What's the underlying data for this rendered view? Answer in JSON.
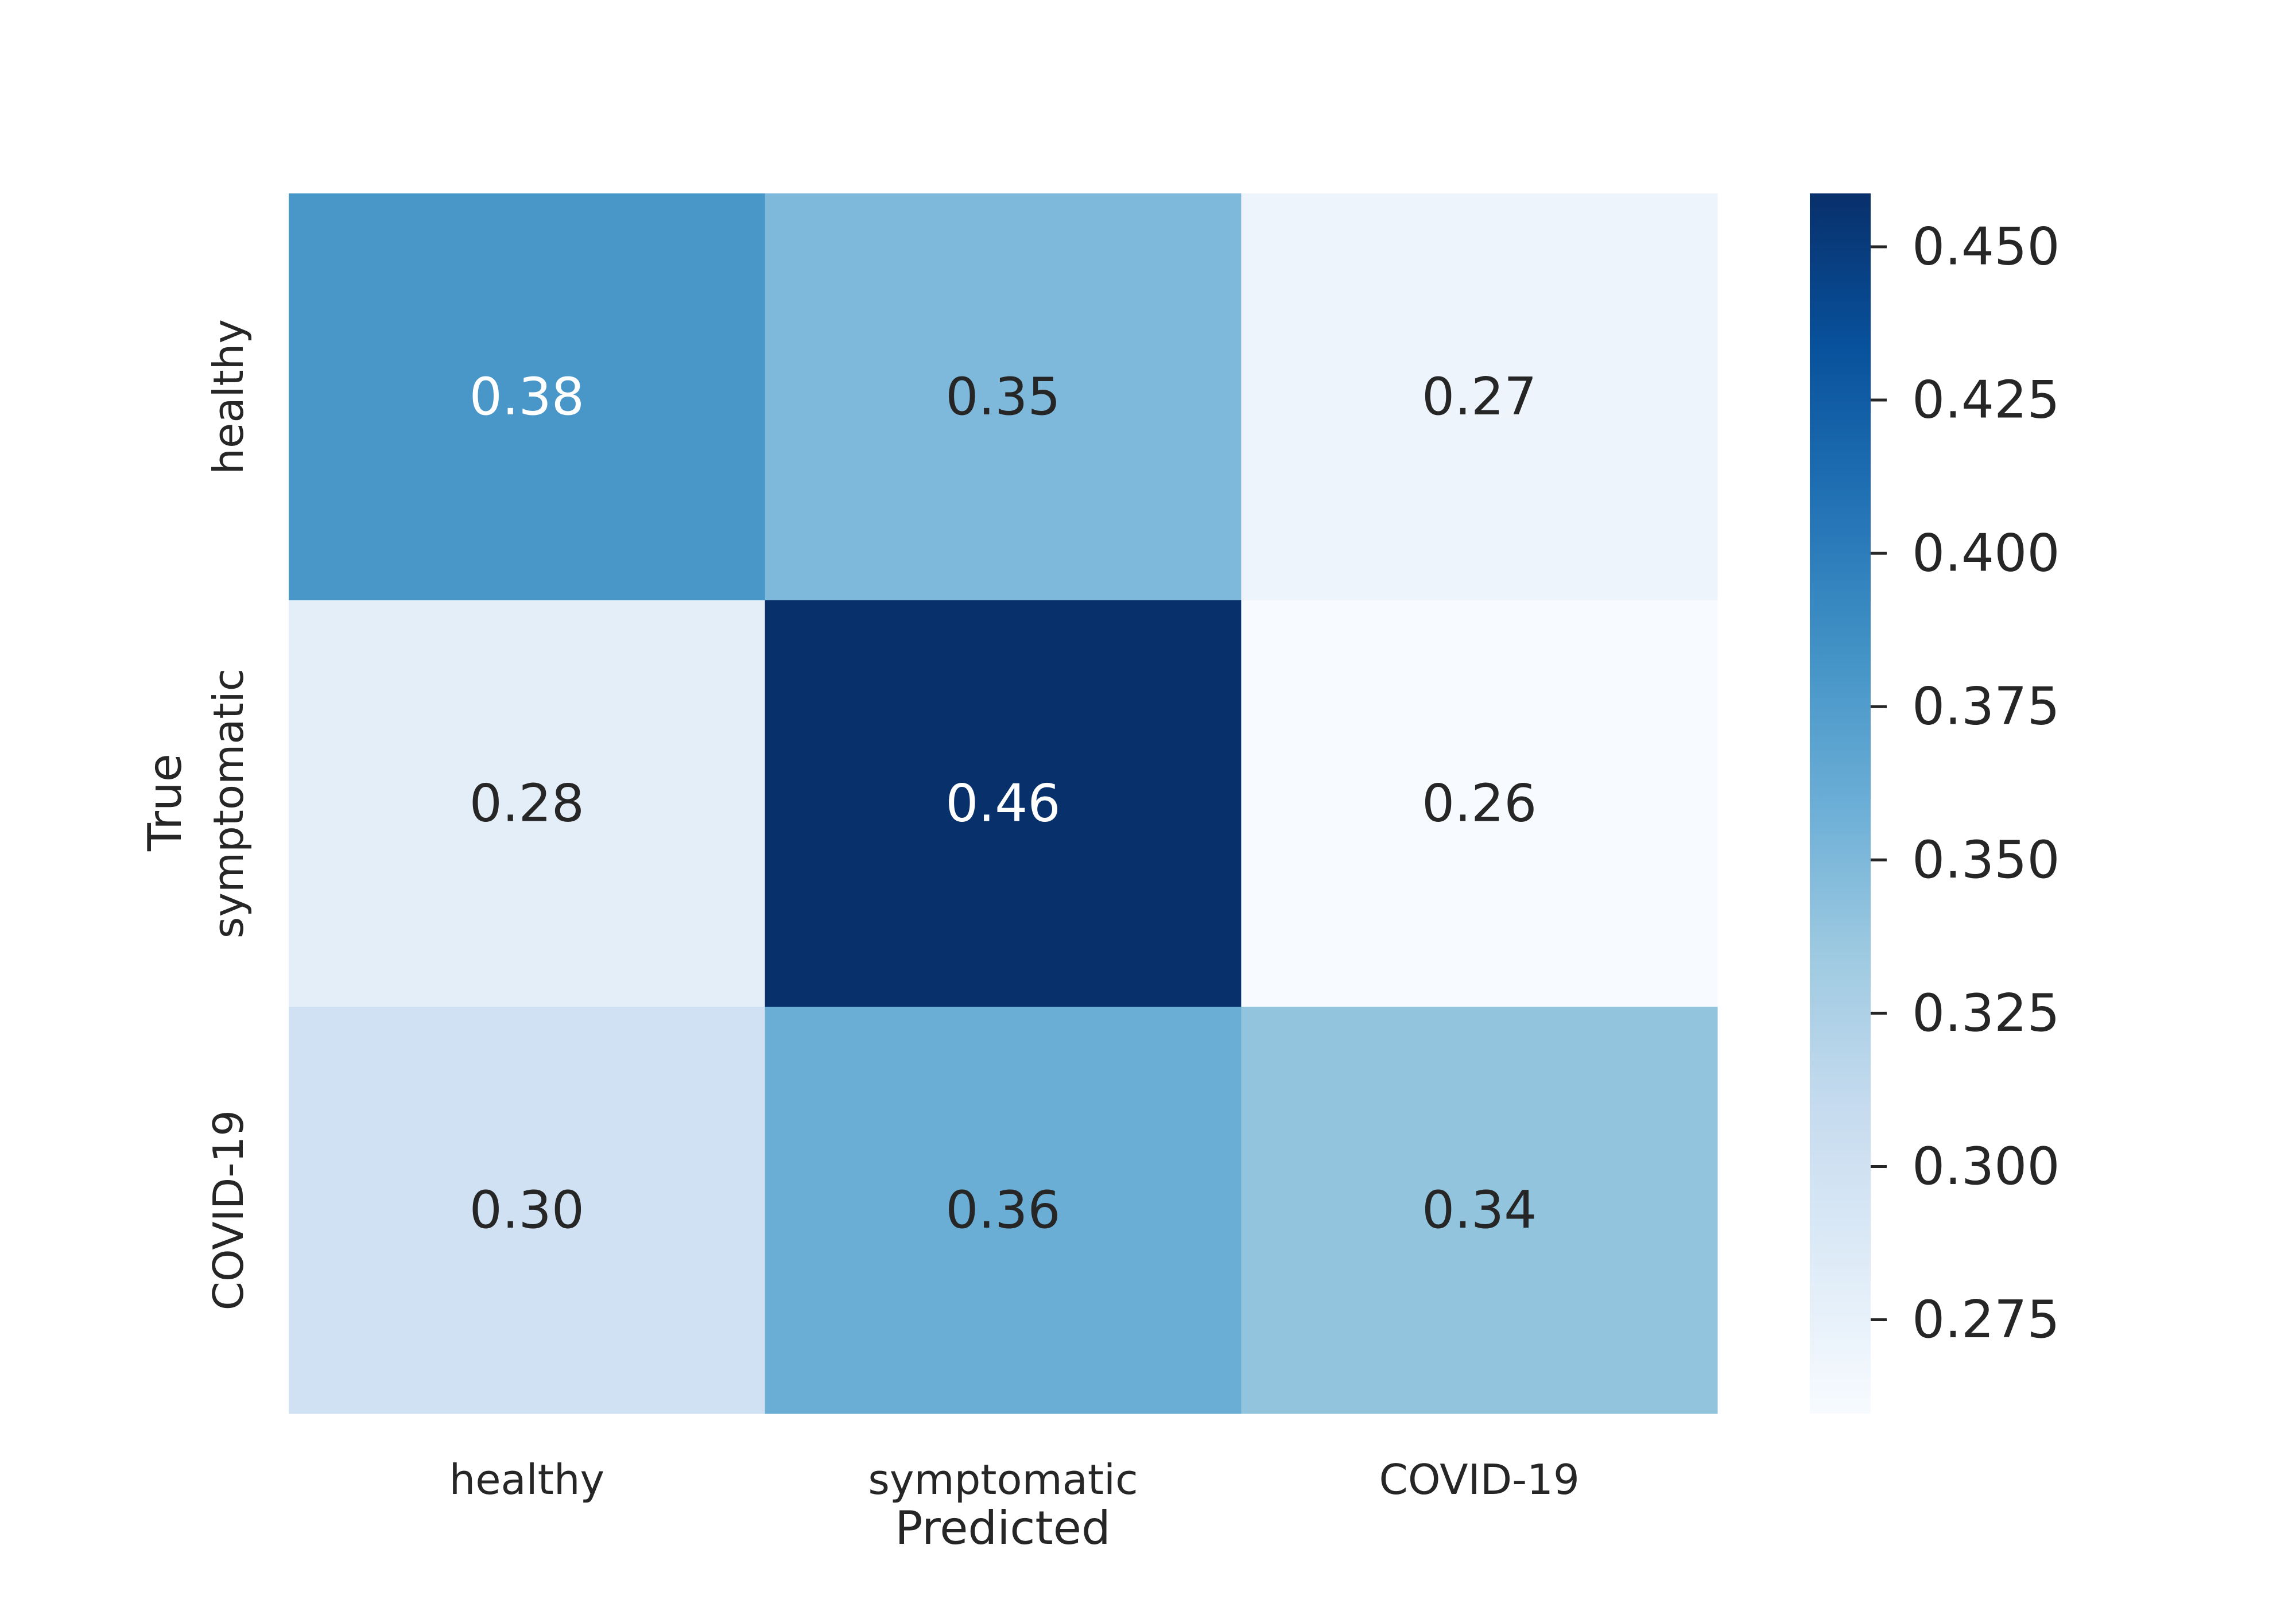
{
  "chart_data": {
    "type": "heatmap",
    "title": "",
    "xlabel": "Predicted",
    "ylabel": "True",
    "x_categories": [
      "healthy",
      "symptomatic",
      "COVID-19"
    ],
    "y_categories": [
      "healthy",
      "symptomatic",
      "COVID-19"
    ],
    "values": [
      [
        0.38,
        0.35,
        0.27
      ],
      [
        0.28,
        0.46,
        0.26
      ],
      [
        0.3,
        0.36,
        0.34
      ]
    ],
    "value_labels": [
      [
        "0.38",
        "0.35",
        "0.27"
      ],
      [
        "0.28",
        "0.46",
        "0.26"
      ],
      [
        "0.30",
        "0.36",
        "0.34"
      ]
    ],
    "colormap": "Blues",
    "color_range": [
      0.2597,
      0.4587
    ],
    "colorbar_ticks": [
      0.275,
      0.3,
      0.325,
      0.35,
      0.375,
      0.4,
      0.425,
      0.45
    ],
    "colorbar_tick_labels": [
      "0.275",
      "0.300",
      "0.325",
      "0.350",
      "0.375",
      "0.400",
      "0.425",
      "0.450"
    ],
    "colorbar_position": "right"
  }
}
